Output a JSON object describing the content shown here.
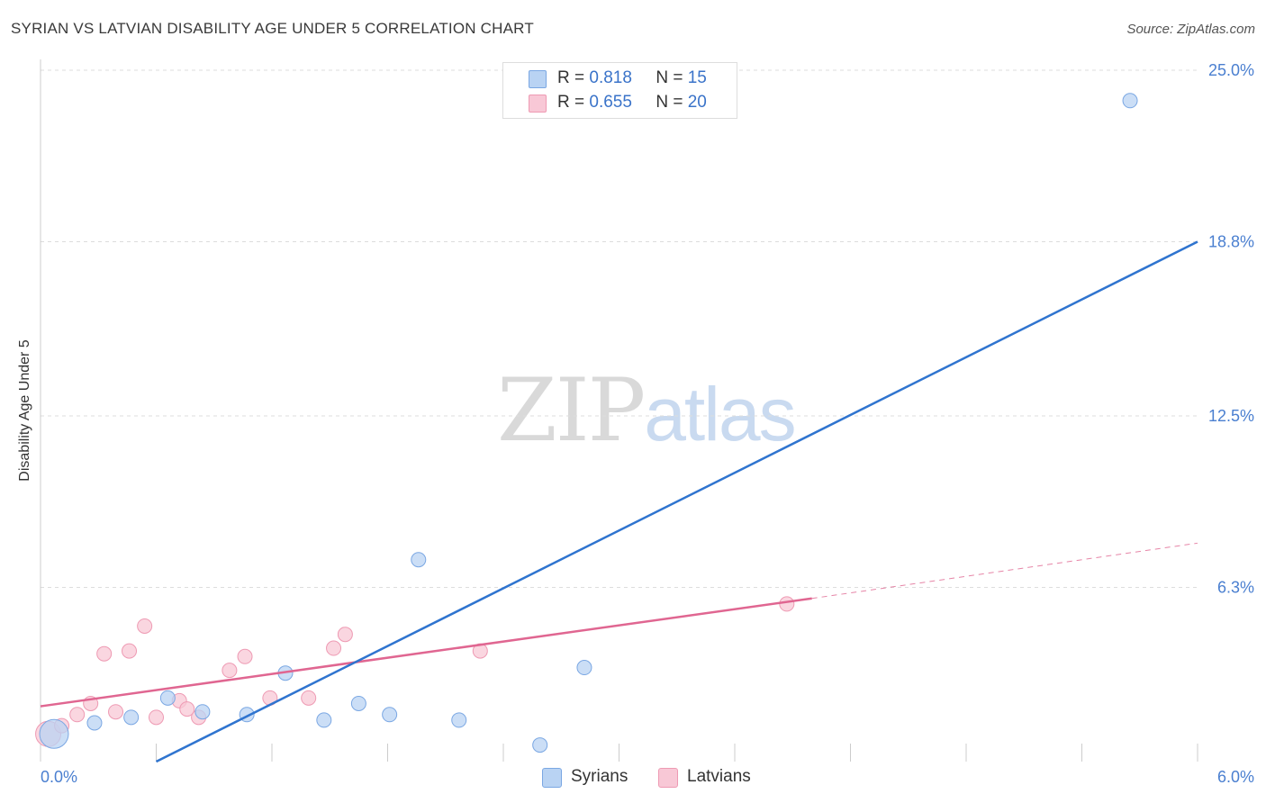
{
  "title": "SYRIAN VS LATVIAN DISABILITY AGE UNDER 5 CORRELATION CHART",
  "source": "Source: ZipAtlas.com",
  "watermark": {
    "zip": "ZIP",
    "atlas": "atlas"
  },
  "legend": {
    "syrians": {
      "r_label": "R =",
      "r_value": "0.818",
      "n_label": "N =",
      "n_value": "15"
    },
    "latvians": {
      "r_label": "R =",
      "r_value": "0.655",
      "n_label": "N =",
      "n_value": "20"
    }
  },
  "bottom_legend": {
    "syrians": "Syrians",
    "latvians": "Latvians"
  },
  "colors": {
    "syrian_fill": "#b9d3f3",
    "syrian_stroke": "#7aa7e3",
    "syrian_line": "#2f74cf",
    "latvian_fill": "#f8c8d6",
    "latvian_stroke": "#ee9ab3",
    "latvian_line": "#e06691",
    "grid": "#dddddd",
    "tick": "#4a7fd0"
  },
  "chart_data": {
    "type": "scatter",
    "title": "SYRIAN VS LATVIAN DISABILITY AGE UNDER 5 CORRELATION CHART",
    "xlabel": "",
    "ylabel": "Disability Age Under 5",
    "xlim": [
      0.0,
      6.0
    ],
    "ylim": [
      0.0,
      25.0
    ],
    "x_tick_labels": [
      "0.0%",
      "6.0%"
    ],
    "y_ticks": [
      6.3,
      12.5,
      18.8,
      25.0
    ],
    "y_tick_labels": [
      "6.3%",
      "12.5%",
      "18.8%",
      "25.0%"
    ],
    "series": [
      {
        "name": "Syrians",
        "points": [
          {
            "x": 0.07,
            "y": 1.0,
            "big": true
          },
          {
            "x": 0.28,
            "y": 1.4
          },
          {
            "x": 0.47,
            "y": 1.6
          },
          {
            "x": 0.66,
            "y": 2.3
          },
          {
            "x": 0.84,
            "y": 1.8
          },
          {
            "x": 1.07,
            "y": 1.7
          },
          {
            "x": 1.27,
            "y": 3.2
          },
          {
            "x": 1.47,
            "y": 1.5
          },
          {
            "x": 1.65,
            "y": 2.1
          },
          {
            "x": 1.81,
            "y": 1.7
          },
          {
            "x": 1.96,
            "y": 7.3
          },
          {
            "x": 2.17,
            "y": 1.5
          },
          {
            "x": 2.59,
            "y": 0.6
          },
          {
            "x": 2.82,
            "y": 3.4
          },
          {
            "x": 5.65,
            "y": 23.9
          }
        ],
        "trend": {
          "x1": 0.6,
          "y1": 0.0,
          "x2": 6.0,
          "y2": 18.8
        }
      },
      {
        "name": "Latvians",
        "points": [
          {
            "x": 0.04,
            "y": 1.0,
            "big": true
          },
          {
            "x": 0.11,
            "y": 1.3
          },
          {
            "x": 0.19,
            "y": 1.7
          },
          {
            "x": 0.26,
            "y": 2.1
          },
          {
            "x": 0.33,
            "y": 3.9
          },
          {
            "x": 0.39,
            "y": 1.8
          },
          {
            "x": 0.46,
            "y": 4.0
          },
          {
            "x": 0.54,
            "y": 4.9
          },
          {
            "x": 0.6,
            "y": 1.6
          },
          {
            "x": 0.72,
            "y": 2.2
          },
          {
            "x": 0.76,
            "y": 1.9
          },
          {
            "x": 0.82,
            "y": 1.6
          },
          {
            "x": 0.98,
            "y": 3.3
          },
          {
            "x": 1.06,
            "y": 3.8
          },
          {
            "x": 1.19,
            "y": 2.3
          },
          {
            "x": 1.39,
            "y": 2.3
          },
          {
            "x": 1.52,
            "y": 4.1
          },
          {
            "x": 1.58,
            "y": 4.6
          },
          {
            "x": 2.28,
            "y": 4.0
          },
          {
            "x": 3.87,
            "y": 5.7
          }
        ],
        "trend": {
          "x1": 0.0,
          "y1": 2.0,
          "x2": 4.0,
          "y2": 5.9
        },
        "trend_dashed": {
          "x1": 4.0,
          "y1": 5.9,
          "x2": 6.0,
          "y2": 7.9
        }
      }
    ]
  }
}
